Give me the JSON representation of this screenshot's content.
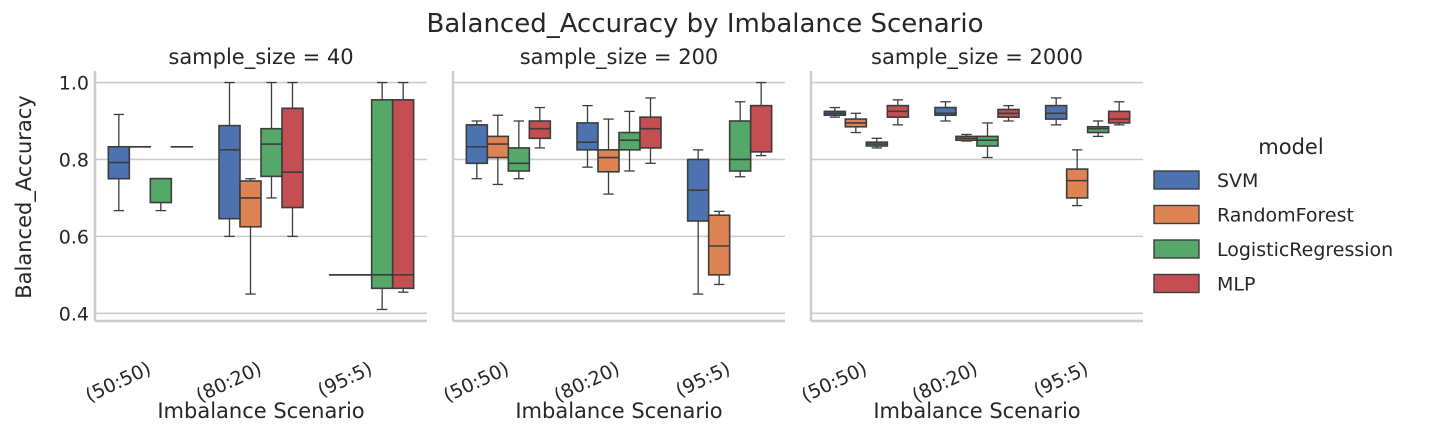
{
  "chart_data": {
    "type": "boxplot",
    "title": "Balanced_Accuracy by Imbalance Scenario",
    "ylabel": "Balanced_Accuracy",
    "xlabel": "Imbalance Scenario",
    "ylim": [
      0.38,
      1.03
    ],
    "yticks": [
      "0.4",
      "0.6",
      "0.8",
      "1.0"
    ],
    "categories": [
      "(50:50)",
      "(80:20)",
      "(95:5)"
    ],
    "legend": {
      "title": "model",
      "placement": "center-right",
      "items": [
        {
          "name": "SVM",
          "color": "#4c72b0"
        },
        {
          "name": "RandomForest",
          "color": "#dd8452"
        },
        {
          "name": "LogisticRegression",
          "color": "#55a868"
        },
        {
          "name": "MLP",
          "color": "#c44e52"
        }
      ]
    },
    "facets": [
      {
        "title": "sample_size = 40",
        "boxes": [
          [
            {
              "min": 0.667,
              "q1": 0.75,
              "median": 0.792,
              "q3": 0.833,
              "max": 0.917
            },
            {
              "min": 0.833,
              "q1": 0.833,
              "median": 0.833,
              "q3": 0.833,
              "max": 0.833
            },
            {
              "min": 0.667,
              "q1": 0.688,
              "median": 0.75,
              "q3": 0.75,
              "max": 0.75
            },
            {
              "min": 0.833,
              "q1": 0.833,
              "median": 0.833,
              "q3": 0.833,
              "max": 0.833
            }
          ],
          [
            {
              "min": 0.6,
              "q1": 0.646,
              "median": 0.825,
              "q3": 0.888,
              "max": 1.0
            },
            {
              "min": 0.45,
              "q1": 0.625,
              "median": 0.7,
              "q3": 0.744,
              "max": 0.75
            },
            {
              "min": 0.7,
              "q1": 0.756,
              "median": 0.84,
              "q3": 0.88,
              "max": 1.0
            },
            {
              "min": 0.6,
              "q1": 0.675,
              "median": 0.767,
              "q3": 0.933,
              "max": 1.0
            }
          ],
          [
            {
              "min": 0.5,
              "q1": 0.5,
              "median": 0.5,
              "q3": 0.5,
              "max": 0.5
            },
            {
              "min": 0.5,
              "q1": 0.5,
              "median": 0.5,
              "q3": 0.5,
              "max": 0.5
            },
            {
              "min": 0.41,
              "q1": 0.465,
              "median": 0.5,
              "q3": 0.955,
              "max": 1.0
            },
            {
              "min": 0.455,
              "q1": 0.465,
              "median": 0.5,
              "q3": 0.955,
              "max": 1.0
            }
          ]
        ]
      },
      {
        "title": "sample_size = 200",
        "boxes": [
          [
            {
              "min": 0.75,
              "q1": 0.79,
              "median": 0.833,
              "q3": 0.89,
              "max": 0.9
            },
            {
              "min": 0.735,
              "q1": 0.805,
              "median": 0.84,
              "q3": 0.86,
              "max": 0.915
            },
            {
              "min": 0.75,
              "q1": 0.77,
              "median": 0.79,
              "q3": 0.83,
              "max": 0.9
            },
            {
              "min": 0.83,
              "q1": 0.855,
              "median": 0.88,
              "q3": 0.9,
              "max": 0.935
            }
          ],
          [
            {
              "min": 0.78,
              "q1": 0.825,
              "median": 0.845,
              "q3": 0.895,
              "max": 0.94
            },
            {
              "min": 0.71,
              "q1": 0.768,
              "median": 0.805,
              "q3": 0.825,
              "max": 0.905
            },
            {
              "min": 0.77,
              "q1": 0.825,
              "median": 0.85,
              "q3": 0.87,
              "max": 0.925
            },
            {
              "min": 0.79,
              "q1": 0.83,
              "median": 0.88,
              "q3": 0.91,
              "max": 0.96
            }
          ],
          [
            {
              "min": 0.45,
              "q1": 0.64,
              "median": 0.72,
              "q3": 0.8,
              "max": 0.825
            },
            {
              "min": 0.475,
              "q1": 0.5,
              "median": 0.575,
              "q3": 0.655,
              "max": 0.665
            },
            {
              "min": 0.755,
              "q1": 0.77,
              "median": 0.8,
              "q3": 0.9,
              "max": 0.95
            },
            {
              "min": 0.81,
              "q1": 0.82,
              "median": 0.82,
              "q3": 0.94,
              "max": 1.0
            }
          ]
        ]
      },
      {
        "title": "sample_size = 2000",
        "boxes": [
          [
            {
              "min": 0.91,
              "q1": 0.915,
              "median": 0.92,
              "q3": 0.925,
              "max": 0.935
            },
            {
              "min": 0.87,
              "q1": 0.885,
              "median": 0.895,
              "q3": 0.905,
              "max": 0.92
            },
            {
              "min": 0.83,
              "q1": 0.835,
              "median": 0.84,
              "q3": 0.845,
              "max": 0.855
            },
            {
              "min": 0.89,
              "q1": 0.91,
              "median": 0.925,
              "q3": 0.94,
              "max": 0.955
            }
          ],
          [
            {
              "min": 0.9,
              "q1": 0.915,
              "median": 0.92,
              "q3": 0.935,
              "max": 0.95
            },
            {
              "min": 0.848,
              "q1": 0.85,
              "median": 0.855,
              "q3": 0.86,
              "max": 0.865
            },
            {
              "min": 0.805,
              "q1": 0.835,
              "median": 0.85,
              "q3": 0.86,
              "max": 0.895
            },
            {
              "min": 0.9,
              "q1": 0.91,
              "median": 0.92,
              "q3": 0.93,
              "max": 0.94
            }
          ],
          [
            {
              "min": 0.89,
              "q1": 0.905,
              "median": 0.92,
              "q3": 0.94,
              "max": 0.96
            },
            {
              "min": 0.68,
              "q1": 0.7,
              "median": 0.745,
              "q3": 0.775,
              "max": 0.825
            },
            {
              "min": 0.86,
              "q1": 0.87,
              "median": 0.88,
              "q3": 0.885,
              "max": 0.9
            },
            {
              "min": 0.89,
              "q1": 0.895,
              "median": 0.905,
              "q3": 0.925,
              "max": 0.95
            }
          ]
        ]
      }
    ]
  }
}
